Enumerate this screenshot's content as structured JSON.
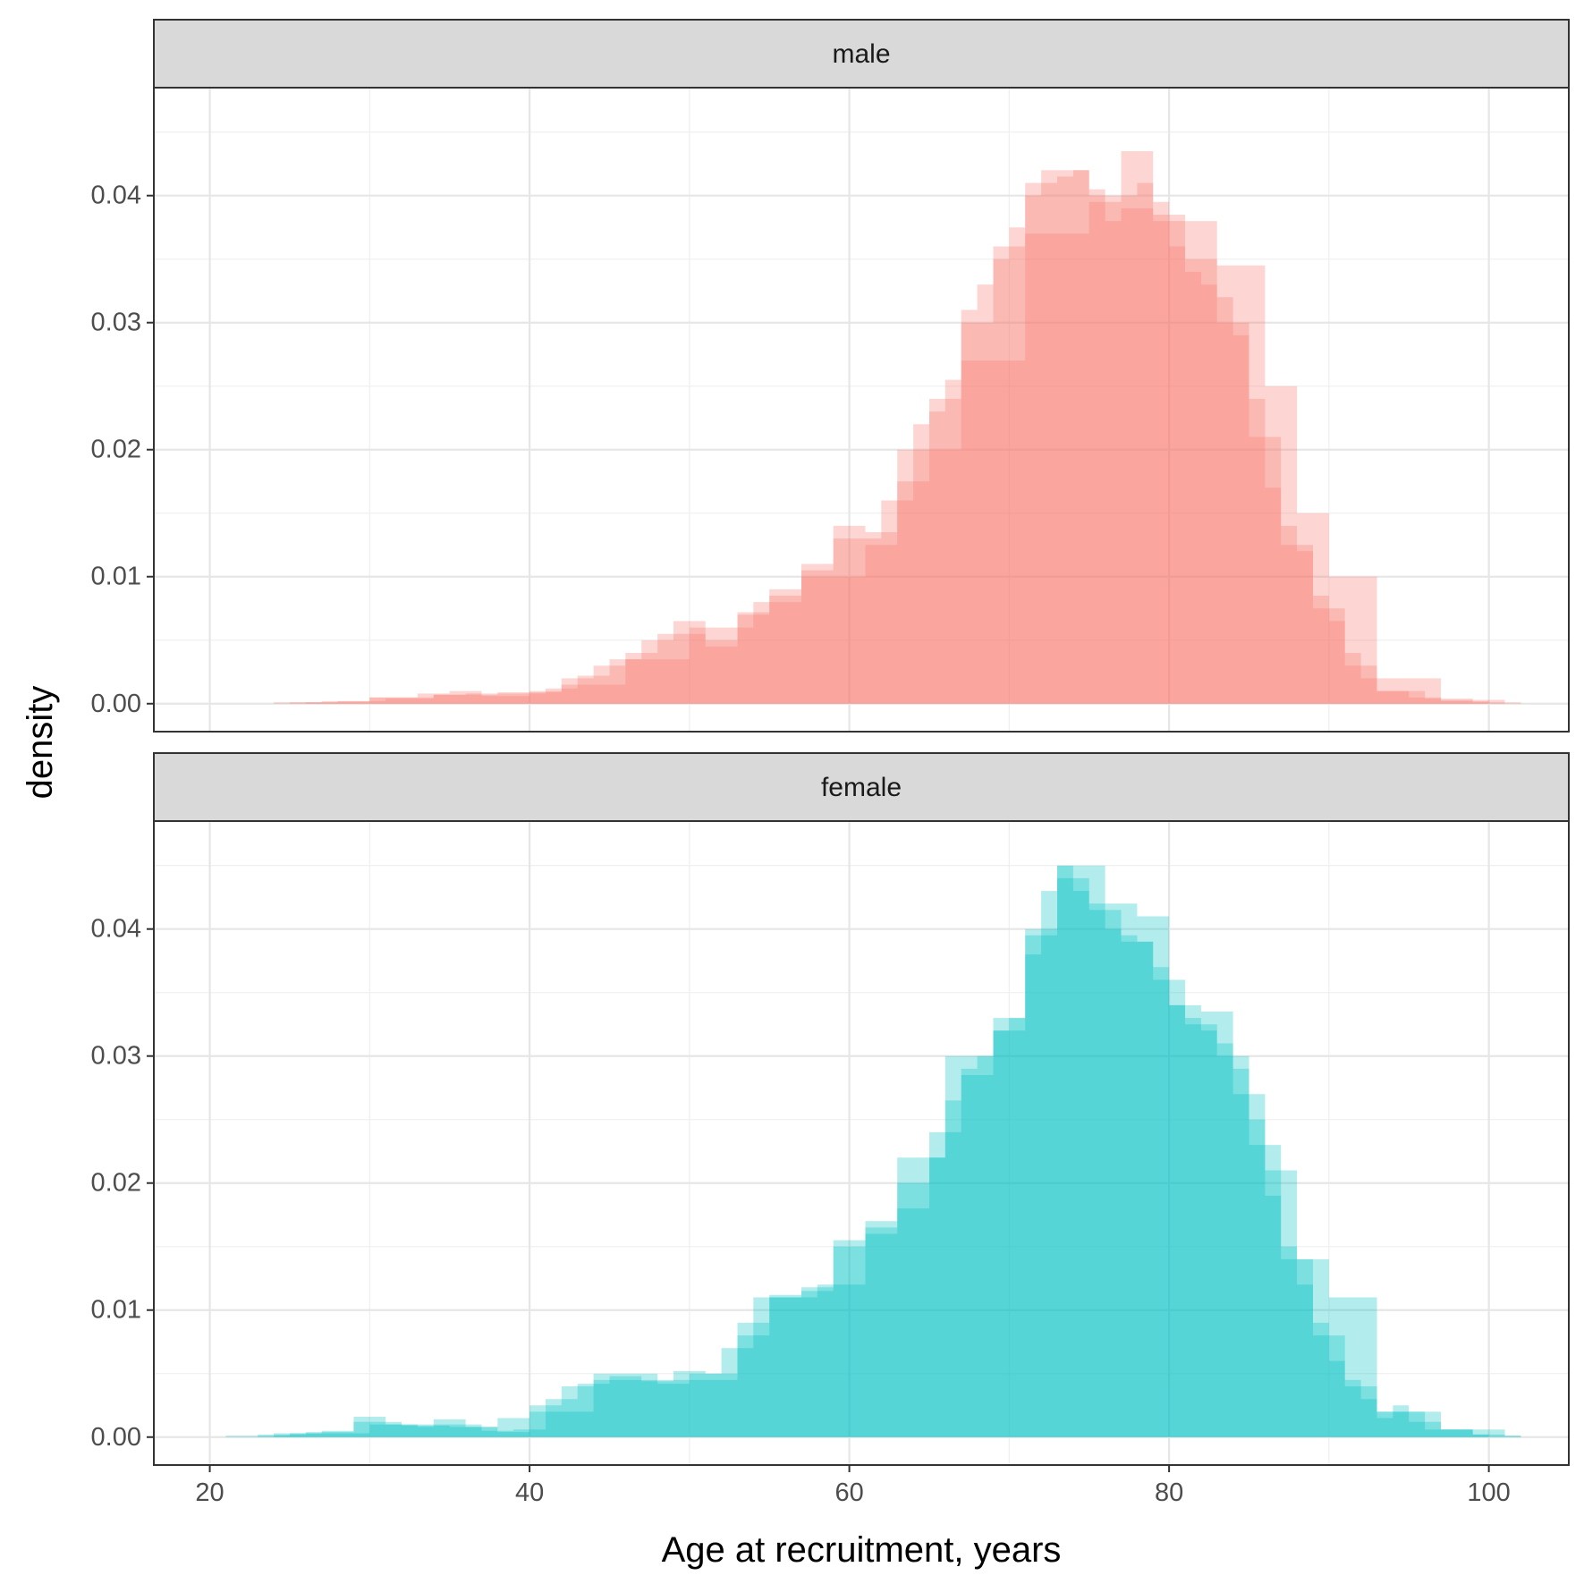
{
  "chart_data": {
    "type": "area",
    "subtype": "faceted overlapping density histograms",
    "xlabel": "Age at recruitment, years",
    "ylabel": "density",
    "xlim": [
      16.5,
      105
    ],
    "ylim": [
      -0.0022,
      0.0485
    ],
    "x_ticks": [
      20,
      40,
      60,
      80,
      100
    ],
    "x_tick_labels": [
      "20",
      "40",
      "60",
      "80",
      "100"
    ],
    "y_ticks": [
      0,
      0.01,
      0.02,
      0.03,
      0.04
    ],
    "y_tick_labels": [
      "0.00",
      "0.01",
      "0.02",
      "0.03",
      "0.04"
    ],
    "grid": true,
    "legend": "none",
    "facets": [
      {
        "label": "male",
        "color": "#F8766D",
        "series": [
          {
            "values": [
              [
                24,
                0.0001
              ],
              [
                27,
                0.0002
              ],
              [
                30,
                0.0005
              ],
              [
                33,
                0.0008
              ],
              [
                35,
                0.001
              ],
              [
                37,
                0.0006
              ],
              [
                40,
                0.001
              ],
              [
                42,
                0.002
              ],
              [
                44,
                0.003
              ],
              [
                46,
                0.004
              ],
              [
                48,
                0.0055
              ],
              [
                49,
                0.0065
              ],
              [
                51,
                0.0045
              ],
              [
                53,
                0.007
              ],
              [
                55,
                0.0085
              ],
              [
                57,
                0.0105
              ],
              [
                59,
                0.014
              ],
              [
                61,
                0.013
              ],
              [
                62,
                0.016
              ],
              [
                64,
                0.022
              ],
              [
                65,
                0.023
              ],
              [
                66,
                0.0255
              ],
              [
                67,
                0.031
              ],
              [
                68,
                0.033
              ],
              [
                69,
                0.035
              ],
              [
                70,
                0.0375
              ],
              [
                71,
                0.04
              ],
              [
                72,
                0.042
              ],
              [
                73,
                0.0415
              ],
              [
                74,
                0.042
              ],
              [
                75,
                0.0405
              ],
              [
                76,
                0.038
              ],
              [
                77,
                0.04
              ],
              [
                78,
                0.041
              ],
              [
                79,
                0.0395
              ],
              [
                80,
                0.036
              ],
              [
                81,
                0.034
              ],
              [
                82,
                0.033
              ],
              [
                83,
                0.032
              ],
              [
                84,
                0.029
              ],
              [
                85,
                0.024
              ],
              [
                86,
                0.017
              ],
              [
                87,
                0.014
              ],
              [
                88,
                0.012
              ],
              [
                89,
                0.0085
              ],
              [
                90,
                0.0065
              ],
              [
                91,
                0.004
              ],
              [
                92,
                0.002
              ],
              [
                93,
                0.001
              ],
              [
                95,
                0.0005
              ],
              [
                97,
                0.0002
              ],
              [
                100,
                0.0001
              ]
            ]
          },
          {
            "values": [
              [
                25,
                0.0001
              ],
              [
                28,
                0.0002
              ],
              [
                31,
                0.0004
              ],
              [
                34,
                0.0007
              ],
              [
                36,
                0.0008
              ],
              [
                38,
                0.0008
              ],
              [
                41,
                0.0012
              ],
              [
                43,
                0.0022
              ],
              [
                45,
                0.0035
              ],
              [
                47,
                0.005
              ],
              [
                49,
                0.0055
              ],
              [
                51,
                0.005
              ],
              [
                53,
                0.0072
              ],
              [
                55,
                0.009
              ],
              [
                57,
                0.011
              ],
              [
                59,
                0.013
              ],
              [
                61,
                0.0135
              ],
              [
                63,
                0.0175
              ],
              [
                65,
                0.024
              ],
              [
                67,
                0.03
              ],
              [
                69,
                0.036
              ],
              [
                71,
                0.041
              ],
              [
                73,
                0.042
              ],
              [
                75,
                0.0395
              ],
              [
                77,
                0.039
              ],
              [
                79,
                0.0385
              ],
              [
                81,
                0.035
              ],
              [
                83,
                0.03
              ],
              [
                85,
                0.021
              ],
              [
                87,
                0.0125
              ],
              [
                89,
                0.0075
              ],
              [
                91,
                0.003
              ],
              [
                93,
                0.001
              ],
              [
                96,
                0.0004
              ],
              [
                99,
                0.0001
              ]
            ]
          },
          {
            "values": [
              [
                26,
                0.0001
              ],
              [
                30,
                0.0005
              ],
              [
                34,
                0.0007
              ],
              [
                38,
                0.0009
              ],
              [
                42,
                0.0015
              ],
              [
                46,
                0.0035
              ],
              [
                50,
                0.006
              ],
              [
                54,
                0.008
              ],
              [
                57,
                0.01
              ],
              [
                61,
                0.0125
              ],
              [
                63,
                0.02
              ],
              [
                67,
                0.027
              ],
              [
                71,
                0.037
              ],
              [
                75,
                0.04
              ],
              [
                77,
                0.0435
              ],
              [
                79,
                0.038
              ],
              [
                83,
                0.0345
              ],
              [
                86,
                0.025
              ],
              [
                88,
                0.015
              ],
              [
                90,
                0.01
              ],
              [
                93,
                0.002
              ],
              [
                97,
                0.0003
              ],
              [
                101,
                0.0001
              ]
            ]
          }
        ]
      },
      {
        "label": "female",
        "color": "#00BFC4",
        "series": [
          {
            "values": [
              [
                20,
                0.0
              ],
              [
                24,
                0.0003
              ],
              [
                27,
                0.0005
              ],
              [
                29,
                0.0016
              ],
              [
                31,
                0.001
              ],
              [
                33,
                0.0008
              ],
              [
                34,
                0.0014
              ],
              [
                36,
                0.0008
              ],
              [
                38,
                0.0004
              ],
              [
                40,
                0.0025
              ],
              [
                42,
                0.004
              ],
              [
                44,
                0.0045
              ],
              [
                46,
                0.0045
              ],
              [
                48,
                0.0042
              ],
              [
                50,
                0.005
              ],
              [
                52,
                0.0045
              ],
              [
                53,
                0.008
              ],
              [
                55,
                0.011
              ],
              [
                57,
                0.0115
              ],
              [
                59,
                0.015
              ],
              [
                61,
                0.016
              ],
              [
                63,
                0.018
              ],
              [
                65,
                0.022
              ],
              [
                66,
                0.0265
              ],
              [
                67,
                0.029
              ],
              [
                68,
                0.03
              ],
              [
                69,
                0.032
              ],
              [
                70,
                0.033
              ],
              [
                71,
                0.038
              ],
              [
                72,
                0.043
              ],
              [
                73,
                0.045
              ],
              [
                74,
                0.043
              ],
              [
                75,
                0.042
              ],
              [
                76,
                0.04
              ],
              [
                77,
                0.0395
              ],
              [
                78,
                0.039
              ],
              [
                79,
                0.037
              ],
              [
                80,
                0.034
              ],
              [
                81,
                0.033
              ],
              [
                82,
                0.032
              ],
              [
                83,
                0.031
              ],
              [
                84,
                0.029
              ],
              [
                85,
                0.025
              ],
              [
                86,
                0.019
              ],
              [
                87,
                0.015
              ],
              [
                88,
                0.012
              ],
              [
                89,
                0.009
              ],
              [
                90,
                0.006
              ],
              [
                91,
                0.0045
              ],
              [
                92,
                0.003
              ],
              [
                93,
                0.0015
              ],
              [
                94,
                0.0025
              ],
              [
                95,
                0.0012
              ],
              [
                97,
                0.0006
              ],
              [
                99,
                0.0002
              ],
              [
                101,
                0.0001
              ]
            ]
          },
          {
            "values": [
              [
                23,
                0.0002
              ],
              [
                26,
                0.0004
              ],
              [
                29,
                0.0012
              ],
              [
                32,
                0.0009
              ],
              [
                35,
                0.001
              ],
              [
                37,
                0.0005
              ],
              [
                39,
                0.0006
              ],
              [
                41,
                0.003
              ],
              [
                43,
                0.0042
              ],
              [
                45,
                0.0048
              ],
              [
                47,
                0.0044
              ],
              [
                49,
                0.0052
              ],
              [
                51,
                0.005
              ],
              [
                53,
                0.009
              ],
              [
                55,
                0.0112
              ],
              [
                57,
                0.0118
              ],
              [
                59,
                0.0155
              ],
              [
                61,
                0.017
              ],
              [
                63,
                0.02
              ],
              [
                65,
                0.024
              ],
              [
                67,
                0.0285
              ],
              [
                69,
                0.033
              ],
              [
                71,
                0.0395
              ],
              [
                73,
                0.044
              ],
              [
                75,
                0.0415
              ],
              [
                77,
                0.039
              ],
              [
                79,
                0.036
              ],
              [
                81,
                0.0325
              ],
              [
                83,
                0.03
              ],
              [
                85,
                0.023
              ],
              [
                87,
                0.014
              ],
              [
                89,
                0.008
              ],
              [
                91,
                0.004
              ],
              [
                93,
                0.002
              ],
              [
                96,
                0.0006
              ],
              [
                99,
                0.0002
              ]
            ]
          },
          {
            "values": [
              [
                21,
                0.0001
              ],
              [
                25,
                0.0003
              ],
              [
                30,
                0.001
              ],
              [
                35,
                0.0008
              ],
              [
                38,
                0.0015
              ],
              [
                40,
                0.002
              ],
              [
                44,
                0.005
              ],
              [
                48,
                0.0045
              ],
              [
                52,
                0.007
              ],
              [
                54,
                0.011
              ],
              [
                58,
                0.012
              ],
              [
                61,
                0.0165
              ],
              [
                63,
                0.022
              ],
              [
                66,
                0.03
              ],
              [
                69,
                0.032
              ],
              [
                71,
                0.04
              ],
              [
                73,
                0.045
              ],
              [
                76,
                0.042
              ],
              [
                78,
                0.041
              ],
              [
                80,
                0.034
              ],
              [
                82,
                0.0335
              ],
              [
                84,
                0.027
              ],
              [
                86,
                0.021
              ],
              [
                88,
                0.014
              ],
              [
                90,
                0.011
              ],
              [
                93,
                0.002
              ],
              [
                97,
                0.0006
              ],
              [
                101,
                0.0001
              ]
            ]
          }
        ]
      }
    ]
  }
}
